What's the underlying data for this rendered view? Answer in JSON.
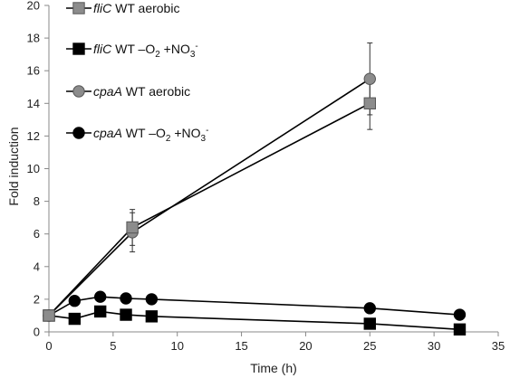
{
  "chart_data": {
    "type": "line",
    "xlabel": "Time (h)",
    "ylabel": "Fold induction",
    "xlim": [
      0,
      35
    ],
    "ylim": [
      0,
      20
    ],
    "x_ticks": [
      0,
      5,
      10,
      15,
      20,
      25,
      30,
      35
    ],
    "y_ticks": [
      0,
      2,
      4,
      6,
      8,
      10,
      12,
      14,
      16,
      18,
      20
    ],
    "grid": false,
    "legend_position": "top-left",
    "series": [
      {
        "gene": "fliC",
        "condition": "WT aerobic",
        "marker": "square",
        "color": "#8c8c8c",
        "x": [
          0,
          6.5,
          25
        ],
        "y": [
          1.0,
          6.4,
          14.0
        ],
        "error": [
          0,
          1.1,
          1.6
        ]
      },
      {
        "gene": "fliC",
        "condition": "WT –O",
        "condition_sub": "2",
        "condition_tail": " +NO",
        "condition_sub2": "3",
        "condition_sup": "-",
        "marker": "square",
        "color": "#000000",
        "x": [
          0,
          2,
          4,
          6,
          8,
          25,
          32
        ],
        "y": [
          1.0,
          0.8,
          1.25,
          1.05,
          0.95,
          0.5,
          0.15
        ],
        "error": [
          0,
          0,
          0,
          0,
          0,
          0,
          0
        ]
      },
      {
        "gene": "cpaA",
        "condition": "WT aerobic",
        "marker": "circle",
        "color": "#8c8c8c",
        "x": [
          0,
          6.5,
          25
        ],
        "y": [
          1.0,
          6.1,
          15.5
        ],
        "error": [
          0,
          1.2,
          2.2
        ]
      },
      {
        "gene": "cpaA",
        "condition": "WT –O",
        "condition_sub": "2",
        "condition_tail": " +NO",
        "condition_sub2": "3",
        "condition_sup": "-",
        "marker": "circle",
        "color": "#000000",
        "x": [
          0,
          2,
          4,
          6,
          8,
          25,
          32
        ],
        "y": [
          1.0,
          1.9,
          2.15,
          2.05,
          2.0,
          1.45,
          1.05
        ],
        "error": [
          0,
          0,
          0,
          0,
          0,
          0,
          0
        ]
      }
    ]
  }
}
